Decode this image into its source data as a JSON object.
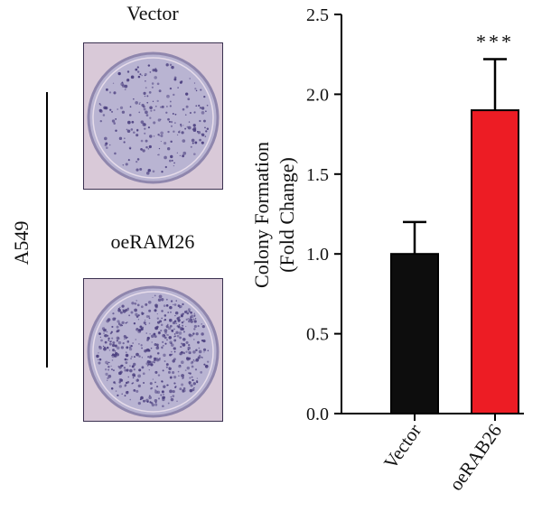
{
  "panel_left": {
    "side_label": "A549",
    "plates": [
      {
        "label": "Vector"
      },
      {
        "label": "oeRAM26"
      }
    ]
  },
  "colors": {
    "plate_bg": "#b9b4d2",
    "plate_rim": "#d9c9d8",
    "plate_frame": "#3a3050",
    "colony": "#4a3e7e",
    "vector_bar": "#0d0d0d",
    "oerab26_bar": "#ed1c24"
  },
  "chart_data": {
    "type": "bar",
    "categories": [
      "Vector",
      "oeRAB26"
    ],
    "values": [
      1.0,
      1.9
    ],
    "errors": [
      0.2,
      0.32
    ],
    "bar_colors": [
      "#0d0d0d",
      "#ed1c24"
    ],
    "ylabel": "Colony Formation",
    "ylabel2": "(Fold Change)",
    "ylim": [
      0,
      2.5
    ],
    "yticks": [
      "0.0",
      "0.5",
      "1.0",
      "1.5",
      "2.0",
      "2.5"
    ],
    "significance": [
      {
        "category": "oeRAB26",
        "label": "***"
      }
    ],
    "grid": false
  }
}
